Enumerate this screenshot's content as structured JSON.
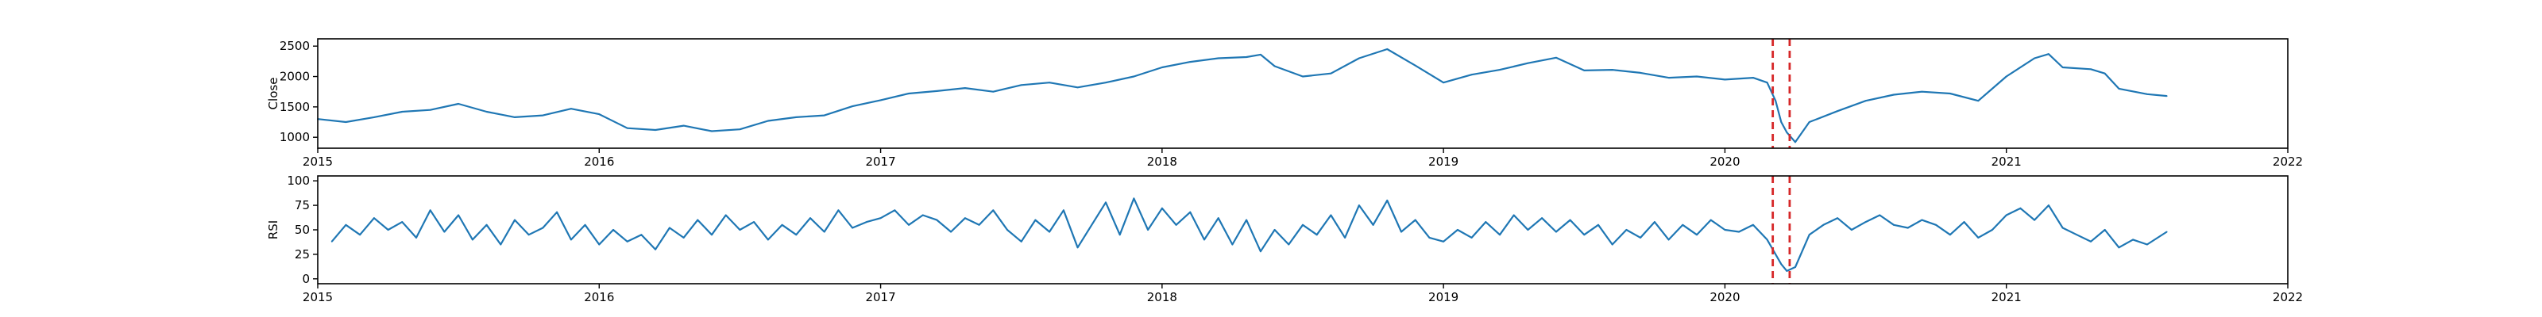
{
  "chart_data": [
    {
      "type": "line",
      "title": "",
      "xlabel": "",
      "ylabel": "Close",
      "xlim": [
        2015.0,
        2022.0
      ],
      "ylim": [
        820,
        2620
      ],
      "x_ticks": [
        2015,
        2016,
        2017,
        2018,
        2019,
        2020,
        2021,
        2022
      ],
      "y_ticks": [
        1000,
        1500,
        2000,
        2500
      ],
      "grid": false,
      "color": "#1f77b4",
      "event_color": "#d62728",
      "event_lines": [
        2020.17,
        2020.23
      ],
      "series": [
        {
          "x": [
            2015.0,
            2015.1,
            2015.2,
            2015.3,
            2015.4,
            2015.5,
            2015.6,
            2015.7,
            2015.8,
            2015.9,
            2016.0,
            2016.1,
            2016.2,
            2016.3,
            2016.4,
            2016.5,
            2016.6,
            2016.7,
            2016.8,
            2016.9,
            2017.0,
            2017.1,
            2017.2,
            2017.3,
            2017.4,
            2017.5,
            2017.6,
            2017.7,
            2017.8,
            2017.9,
            2018.0,
            2018.1,
            2018.2,
            2018.3,
            2018.35,
            2018.4,
            2018.5,
            2018.6,
            2018.7,
            2018.8,
            2018.9,
            2019.0,
            2019.1,
            2019.2,
            2019.3,
            2019.4,
            2019.5,
            2019.6,
            2019.7,
            2019.8,
            2019.9,
            2020.0,
            2020.1,
            2020.15,
            2020.18,
            2020.2,
            2020.22,
            2020.25,
            2020.3,
            2020.4,
            2020.5,
            2020.6,
            2020.7,
            2020.8,
            2020.9,
            2021.0,
            2021.1,
            2021.15,
            2021.2,
            2021.3,
            2021.35,
            2021.4,
            2021.5,
            2021.57
          ],
          "y": [
            1300,
            1250,
            1330,
            1420,
            1450,
            1550,
            1420,
            1330,
            1360,
            1470,
            1380,
            1150,
            1120,
            1190,
            1100,
            1130,
            1270,
            1330,
            1360,
            1510,
            1610,
            1720,
            1760,
            1810,
            1750,
            1860,
            1900,
            1820,
            1900,
            2000,
            2150,
            2240,
            2300,
            2320,
            2360,
            2170,
            2000,
            2050,
            2300,
            2450,
            2180,
            1900,
            2030,
            2110,
            2220,
            2310,
            2100,
            2110,
            2060,
            1980,
            2000,
            1950,
            1980,
            1900,
            1600,
            1250,
            1080,
            920,
            1250,
            1430,
            1600,
            1700,
            1750,
            1720,
            1600,
            2000,
            2300,
            2370,
            2150,
            2120,
            2050,
            1800,
            1710,
            1680
          ]
        }
      ]
    },
    {
      "type": "line",
      "title": "",
      "xlabel": "",
      "ylabel": "RSI",
      "xlim": [
        2015.0,
        2022.0
      ],
      "ylim": [
        -5,
        105
      ],
      "x_ticks": [
        2015,
        2016,
        2017,
        2018,
        2019,
        2020,
        2021,
        2022
      ],
      "y_ticks": [
        0,
        25,
        50,
        75,
        100
      ],
      "grid": false,
      "color": "#1f77b4",
      "event_color": "#d62728",
      "event_lines": [
        2020.17,
        2020.23
      ],
      "series": [
        {
          "x": [
            2015.05,
            2015.1,
            2015.15,
            2015.2,
            2015.25,
            2015.3,
            2015.35,
            2015.4,
            2015.45,
            2015.5,
            2015.55,
            2015.6,
            2015.65,
            2015.7,
            2015.75,
            2015.8,
            2015.85,
            2015.9,
            2015.95,
            2016.0,
            2016.05,
            2016.1,
            2016.15,
            2016.2,
            2016.25,
            2016.3,
            2016.35,
            2016.4,
            2016.45,
            2016.5,
            2016.55,
            2016.6,
            2016.65,
            2016.7,
            2016.75,
            2016.8,
            2016.85,
            2016.9,
            2016.95,
            2017.0,
            2017.05,
            2017.1,
            2017.15,
            2017.2,
            2017.25,
            2017.3,
            2017.35,
            2017.4,
            2017.45,
            2017.5,
            2017.55,
            2017.6,
            2017.65,
            2017.7,
            2017.75,
            2017.8,
            2017.85,
            2017.9,
            2017.95,
            2018.0,
            2018.05,
            2018.1,
            2018.15,
            2018.2,
            2018.25,
            2018.3,
            2018.35,
            2018.4,
            2018.45,
            2018.5,
            2018.55,
            2018.6,
            2018.65,
            2018.7,
            2018.75,
            2018.8,
            2018.85,
            2018.9,
            2018.95,
            2019.0,
            2019.05,
            2019.1,
            2019.15,
            2019.2,
            2019.25,
            2019.3,
            2019.35,
            2019.4,
            2019.45,
            2019.5,
            2019.55,
            2019.6,
            2019.65,
            2019.7,
            2019.75,
            2019.8,
            2019.85,
            2019.9,
            2019.95,
            2020.0,
            2020.05,
            2020.1,
            2020.15,
            2020.18,
            2020.2,
            2020.22,
            2020.25,
            2020.3,
            2020.35,
            2020.4,
            2020.45,
            2020.5,
            2020.55,
            2020.6,
            2020.65,
            2020.7,
            2020.75,
            2020.8,
            2020.85,
            2020.9,
            2020.95,
            2021.0,
            2021.05,
            2021.1,
            2021.15,
            2021.2,
            2021.25,
            2021.3,
            2021.35,
            2021.4,
            2021.45,
            2021.5,
            2021.57
          ],
          "y": [
            38,
            55,
            45,
            62,
            50,
            58,
            42,
            70,
            48,
            65,
            40,
            55,
            35,
            60,
            45,
            52,
            68,
            40,
            55,
            35,
            50,
            38,
            45,
            30,
            52,
            42,
            60,
            45,
            65,
            50,
            58,
            40,
            55,
            45,
            62,
            48,
            70,
            52,
            58,
            62,
            70,
            55,
            65,
            60,
            48,
            62,
            55,
            70,
            50,
            38,
            60,
            48,
            70,
            32,
            55,
            78,
            45,
            82,
            50,
            72,
            55,
            68,
            40,
            62,
            35,
            60,
            28,
            50,
            35,
            55,
            45,
            65,
            42,
            75,
            55,
            80,
            48,
            60,
            42,
            38,
            50,
            42,
            58,
            45,
            65,
            50,
            62,
            48,
            60,
            45,
            55,
            35,
            50,
            42,
            58,
            40,
            55,
            45,
            60,
            50,
            48,
            55,
            40,
            25,
            15,
            8,
            12,
            45,
            55,
            62,
            50,
            58,
            65,
            55,
            52,
            60,
            55,
            45,
            58,
            42,
            50,
            65,
            72,
            60,
            75,
            52,
            45,
            38,
            50,
            32,
            40,
            35,
            48
          ]
        }
      ]
    }
  ]
}
